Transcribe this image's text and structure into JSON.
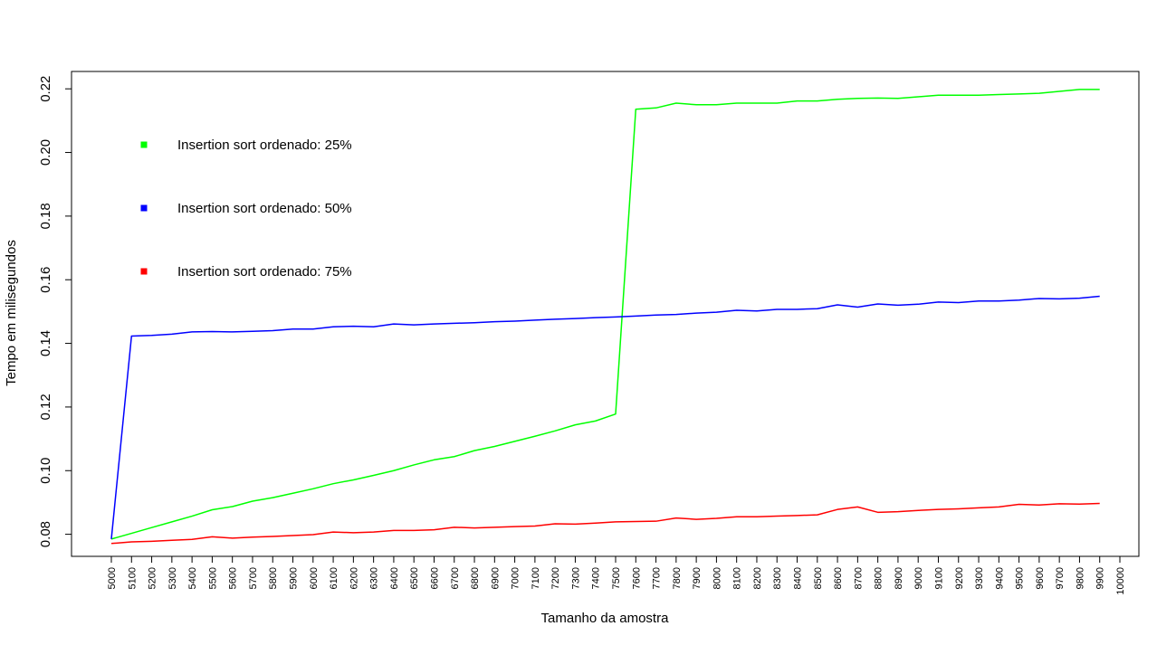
{
  "chart_data": {
    "type": "line",
    "title": "",
    "xlabel": "Tamanho da amostra",
    "ylabel": "Tempo em milisegundos",
    "xlim": [
      5000,
      10000
    ],
    "ylim": [
      0.078,
      0.22
    ],
    "x_ticks": [
      5000,
      5100,
      5200,
      5300,
      5400,
      5500,
      5600,
      5700,
      5800,
      5900,
      6000,
      6100,
      6200,
      6300,
      6400,
      6500,
      6600,
      6700,
      6800,
      6900,
      7000,
      7100,
      7200,
      7300,
      7400,
      7500,
      7600,
      7700,
      7800,
      7900,
      8000,
      8100,
      8200,
      8300,
      8400,
      8500,
      8600,
      8700,
      8800,
      8900,
      9000,
      9100,
      9200,
      9300,
      9400,
      9500,
      9600,
      9700,
      9800,
      9900,
      10000
    ],
    "y_ticks": [
      0.08,
      0.1,
      0.12,
      0.14,
      0.16,
      0.18,
      0.2,
      0.22
    ],
    "y_tick_labels": [
      "0.08",
      "0.10",
      "0.12",
      "0.14",
      "0.16",
      "0.18",
      "0.20",
      "0.22"
    ],
    "grid": false,
    "legend_position": "top-left",
    "x": [
      5000,
      5100,
      5200,
      5300,
      5400,
      5500,
      5600,
      5700,
      5800,
      5900,
      6000,
      6100,
      6200,
      6300,
      6400,
      6500,
      6600,
      6700,
      6800,
      6900,
      7000,
      7100,
      7200,
      7300,
      7400,
      7500,
      7600,
      7700,
      7800,
      7900,
      8000,
      8100,
      8200,
      8300,
      8400,
      8500,
      8600,
      8700,
      8800,
      8900,
      9000,
      9100,
      9200,
      9300,
      9400,
      9500,
      9600,
      9700,
      9800,
      9900
    ],
    "series": [
      {
        "name": "Insertion sort ordenado: 25%",
        "color": "#00ff00",
        "values": [
          0.0785,
          0.0803,
          0.0821,
          0.0839,
          0.0857,
          0.0877,
          0.0887,
          0.0904,
          0.0915,
          0.0929,
          0.0943,
          0.0959,
          0.0971,
          0.0985,
          0.1,
          0.1018,
          0.1034,
          0.1044,
          0.1063,
          0.1076,
          0.1092,
          0.1108,
          0.1125,
          0.1144,
          0.1156,
          0.1178,
          0.2136,
          0.214,
          0.2155,
          0.215,
          0.215,
          0.2155,
          0.2155,
          0.2155,
          0.2162,
          0.2162,
          0.2167,
          0.217,
          0.2171,
          0.217,
          0.2175,
          0.218,
          0.218,
          0.218,
          0.2182,
          0.2184,
          0.2186,
          0.2192,
          0.2198,
          0.2198
        ]
      },
      {
        "name": "Insertion sort ordenado: 50%",
        "color": "#0000ff",
        "values": [
          0.0785,
          0.1423,
          0.1425,
          0.1429,
          0.1436,
          0.1437,
          0.1436,
          0.1438,
          0.144,
          0.1445,
          0.1445,
          0.1452,
          0.1454,
          0.1452,
          0.1461,
          0.1458,
          0.1461,
          0.1463,
          0.1465,
          0.1468,
          0.147,
          0.1473,
          0.1476,
          0.1478,
          0.1481,
          0.1483,
          0.1486,
          0.1489,
          0.1491,
          0.1495,
          0.1498,
          0.1504,
          0.1502,
          0.1507,
          0.1507,
          0.1509,
          0.1521,
          0.1514,
          0.1524,
          0.152,
          0.1523,
          0.153,
          0.1528,
          0.1533,
          0.1533,
          0.1536,
          0.1541,
          0.154,
          0.1542,
          0.1548
        ]
      },
      {
        "name": "Insertion sort ordenado: 75%",
        "color": "#ff0000",
        "values": [
          0.0771,
          0.0776,
          0.0778,
          0.0781,
          0.0784,
          0.0792,
          0.0788,
          0.0791,
          0.0793,
          0.0796,
          0.0799,
          0.0807,
          0.0805,
          0.0807,
          0.0812,
          0.0812,
          0.0814,
          0.0822,
          0.082,
          0.0822,
          0.0824,
          0.0826,
          0.0833,
          0.0832,
          0.0835,
          0.0839,
          0.084,
          0.0841,
          0.0851,
          0.0847,
          0.085,
          0.0855,
          0.0855,
          0.0857,
          0.0859,
          0.0861,
          0.0878,
          0.0886,
          0.0869,
          0.0871,
          0.0875,
          0.0878,
          0.088,
          0.0883,
          0.0886,
          0.0894,
          0.0892,
          0.0896,
          0.0895,
          0.0897
        ]
      }
    ]
  }
}
